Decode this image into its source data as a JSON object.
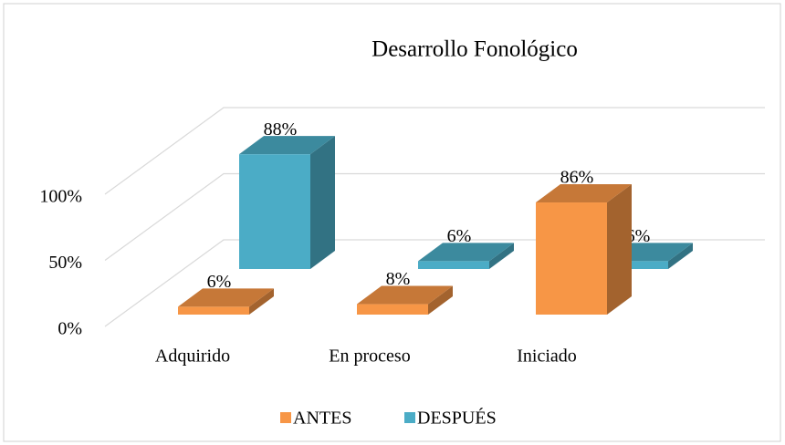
{
  "chart_data": {
    "type": "bar3d",
    "title": "Desarrollo Fonológico",
    "categories": [
      "Adquirido",
      "En proceso",
      "Iniciado"
    ],
    "series": [
      {
        "name": "ANTES",
        "color": "#F79646",
        "values": [
          6,
          8,
          86
        ],
        "value_labels": [
          "6%",
          "8%",
          "86%"
        ]
      },
      {
        "name": "DESPUÉS",
        "color": "#4BACC6",
        "values": [
          88,
          6,
          6
        ],
        "value_labels": [
          "88%",
          "6%",
          "6%"
        ]
      }
    ],
    "ylim": [
      0,
      100
    ],
    "yticks": [
      {
        "value": 0,
        "label": "0%"
      },
      {
        "value": 50,
        "label": "50%"
      },
      {
        "value": 100,
        "label": "100%"
      }
    ],
    "grid": true,
    "legend": "bottom"
  }
}
